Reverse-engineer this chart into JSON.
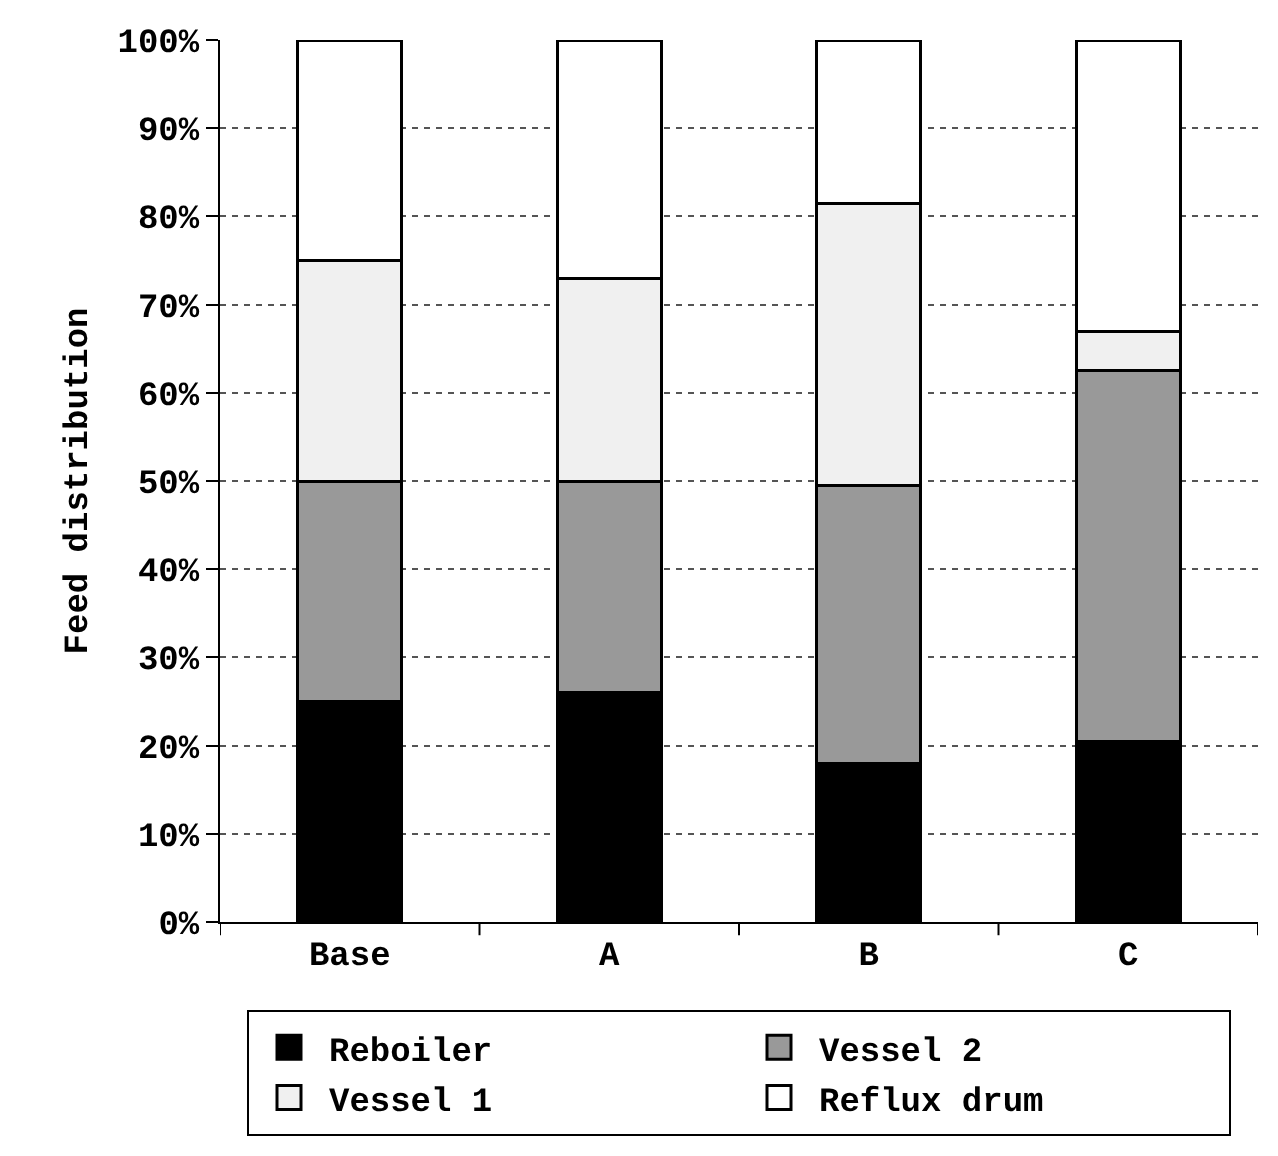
{
  "chart_data": {
    "type": "bar",
    "ylabel": "Feed distribution",
    "categories": [
      "Base",
      "A",
      "B",
      "C"
    ],
    "stacked": true,
    "series": [
      {
        "name": "Reboiler",
        "color": "#000000",
        "values": [
          25,
          26,
          18,
          20.5
        ]
      },
      {
        "name": "Vessel 2",
        "color": "#999999",
        "values": [
          25,
          24,
          31.5,
          42
        ]
      },
      {
        "name": "Vessel 1",
        "color": "#f0f0f0",
        "values": [
          25,
          23,
          32,
          4.5
        ]
      },
      {
        "name": "Reflux drum",
        "color": "#ffffff",
        "values": [
          25,
          27,
          18.5,
          33
        ]
      }
    ],
    "ylim": [
      0,
      100
    ],
    "yticks": [
      {
        "value": 0,
        "label": "0%"
      },
      {
        "value": 10,
        "label": "10%"
      },
      {
        "value": 20,
        "label": "20%"
      },
      {
        "value": 30,
        "label": "30%"
      },
      {
        "value": 40,
        "label": "40%"
      },
      {
        "value": 50,
        "label": "50%"
      },
      {
        "value": 60,
        "label": "60%"
      },
      {
        "value": 70,
        "label": "70%"
      },
      {
        "value": 80,
        "label": "80%"
      },
      {
        "value": 90,
        "label": "90%"
      },
      {
        "value": 100,
        "label": "100%"
      }
    ],
    "grid": "y",
    "legend": "bottom"
  }
}
